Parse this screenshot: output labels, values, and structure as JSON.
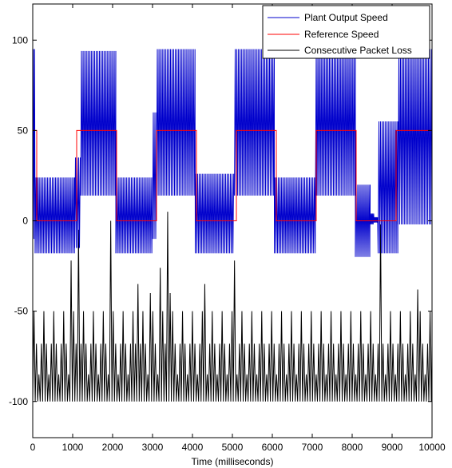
{
  "chart_data": {
    "type": "line",
    "title": "",
    "xlabel": "Time (milliseconds)",
    "ylabel": "",
    "xlim": [
      0,
      10000
    ],
    "ylim": [
      -120,
      120
    ],
    "xticks": [
      0,
      1000,
      2000,
      3000,
      4000,
      5000,
      6000,
      7000,
      8000,
      9000,
      10000
    ],
    "yticks": [
      -100,
      -50,
      0,
      50,
      100
    ],
    "grid": false,
    "legend_position": "top-right",
    "series": [
      {
        "name": "Plant Output Speed",
        "color": "#0000cc",
        "style": "oscillation",
        "segments": [
          {
            "x0": 0,
            "x1": 60,
            "lo": -10,
            "hi": 95,
            "period": 60
          },
          {
            "x0": 60,
            "x1": 1050,
            "lo": -18,
            "hi": 24,
            "period": 82
          },
          {
            "x0": 1050,
            "x1": 1200,
            "lo": -15,
            "hi": 35,
            "period": 80
          },
          {
            "x0": 1200,
            "x1": 2080,
            "lo": 14,
            "hi": 94,
            "period": 82
          },
          {
            "x0": 2080,
            "x1": 3000,
            "lo": -18,
            "hi": 24,
            "period": 82
          },
          {
            "x0": 3000,
            "x1": 3100,
            "lo": -10,
            "hi": 60,
            "period": 80
          },
          {
            "x0": 3100,
            "x1": 4070,
            "lo": 14,
            "hi": 95,
            "period": 82
          },
          {
            "x0": 4070,
            "x1": 5050,
            "lo": -18,
            "hi": 26,
            "period": 82
          },
          {
            "x0": 5050,
            "x1": 6050,
            "lo": 14,
            "hi": 95,
            "period": 82
          },
          {
            "x0": 6050,
            "x1": 7080,
            "lo": -18,
            "hi": 24,
            "period": 82
          },
          {
            "x0": 7080,
            "x1": 8080,
            "lo": 14,
            "hi": 95,
            "period": 82
          },
          {
            "x0": 8080,
            "x1": 8450,
            "lo": -20,
            "hi": 20,
            "period": 80
          },
          {
            "x0": 8450,
            "x1": 8550,
            "lo": -2,
            "hi": 4,
            "period": 50
          },
          {
            "x0": 8550,
            "x1": 8650,
            "lo": -1,
            "hi": 2,
            "period": 50
          },
          {
            "x0": 8650,
            "x1": 9150,
            "lo": -18,
            "hi": 55,
            "period": 82
          },
          {
            "x0": 9150,
            "x1": 10000,
            "lo": -2,
            "hi": 95,
            "period": 82
          }
        ]
      },
      {
        "name": "Reference Speed",
        "color": "#ff0000",
        "style": "step",
        "points": [
          [
            0,
            50
          ],
          [
            100,
            50
          ],
          [
            100,
            0
          ],
          [
            1100,
            0
          ],
          [
            1100,
            50
          ],
          [
            2100,
            50
          ],
          [
            2100,
            0
          ],
          [
            3100,
            0
          ],
          [
            3100,
            50
          ],
          [
            4100,
            50
          ],
          [
            4100,
            0
          ],
          [
            5100,
            0
          ],
          [
            5100,
            50
          ],
          [
            6100,
            50
          ],
          [
            6100,
            0
          ],
          [
            7100,
            0
          ],
          [
            7100,
            50
          ],
          [
            8100,
            50
          ],
          [
            8100,
            0
          ],
          [
            9100,
            0
          ],
          [
            9100,
            50
          ],
          [
            10000,
            50
          ]
        ]
      },
      {
        "name": "Consecutive Packet Loss",
        "color": "#000000",
        "style": "sawtooth",
        "period": 62,
        "lo": -100,
        "hi_values": [
          -50,
          -68,
          -85,
          -68
        ],
        "spikes": [
          {
            "x": 920,
            "y": -22
          },
          {
            "x": 1090,
            "y": -5
          },
          {
            "x": 1900,
            "y": 0
          },
          {
            "x": 2620,
            "y": -35
          },
          {
            "x": 2900,
            "y": -40
          },
          {
            "x": 3180,
            "y": -26
          },
          {
            "x": 3320,
            "y": 5
          },
          {
            "x": 3420,
            "y": -40
          },
          {
            "x": 4270,
            "y": -35
          },
          {
            "x": 5030,
            "y": -22
          },
          {
            "x": 8700,
            "y": -2
          },
          {
            "x": 9630,
            "y": -38
          }
        ]
      }
    ]
  }
}
